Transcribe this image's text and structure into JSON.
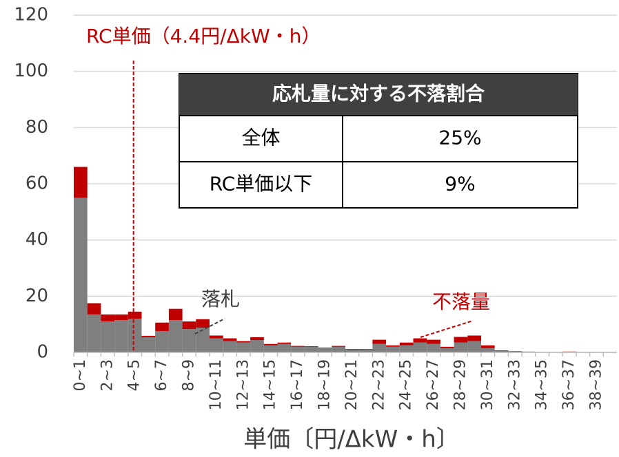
{
  "chart_data": {
    "type": "stacked_bar",
    "xlabel": "単価〔円/ΔkW・h〕",
    "categories": [
      "0~1",
      null,
      "2~3",
      null,
      "4~5",
      null,
      "6~7",
      null,
      "8~9",
      null,
      "10~11",
      null,
      "12~13",
      null,
      "14~15",
      null,
      "16~17",
      null,
      "18~19",
      null,
      "20~21",
      null,
      "22~23",
      null,
      "24~25",
      null,
      "26~27",
      null,
      "28~29",
      null,
      "30~31",
      null,
      "32~33",
      null,
      "34~35",
      null,
      "36~37",
      null,
      "38~39",
      null
    ],
    "series": [
      {
        "name": "落札",
        "color": "#7f7f7f",
        "values": [
          55,
          13.5,
          11,
          11.5,
          12,
          5.4,
          7.6,
          11.5,
          8.3,
          8.8,
          5,
          4,
          3.5,
          4.4,
          2.5,
          3,
          2,
          2,
          1.5,
          2,
          1,
          1,
          3,
          2,
          2.5,
          3.5,
          3,
          1.5,
          3.5,
          4,
          1.5,
          0.5,
          0.5,
          0.3,
          0.2,
          0.2,
          0.2,
          0.2,
          0.2,
          0.2
        ]
      },
      {
        "name": "不落量",
        "color": "#c00000",
        "values": [
          11,
          4,
          2.5,
          2,
          2.5,
          0.5,
          3,
          4,
          2.7,
          3,
          1,
          1,
          0.5,
          1,
          0.5,
          0.5,
          0.3,
          0.2,
          0.2,
          0.3,
          0.2,
          0.2,
          1.5,
          0.5,
          1,
          1.5,
          1.5,
          0.5,
          2,
          2,
          1,
          0.2,
          0,
          0,
          0,
          0,
          0.1,
          0,
          0,
          0
        ]
      }
    ],
    "ylim": [
      0,
      120
    ],
    "yticks": [
      0,
      20,
      40,
      60,
      80,
      100,
      120
    ],
    "grid": true,
    "reference_line": {
      "x": 4.4,
      "label": "RC単価（4.4円/ΔkW・h）",
      "color": "#c00000"
    },
    "table": {
      "title": "応札量に対する不落割合",
      "rows": [
        [
          "全体",
          "25%"
        ],
        [
          "RC単価以下",
          "9%"
        ]
      ]
    }
  }
}
